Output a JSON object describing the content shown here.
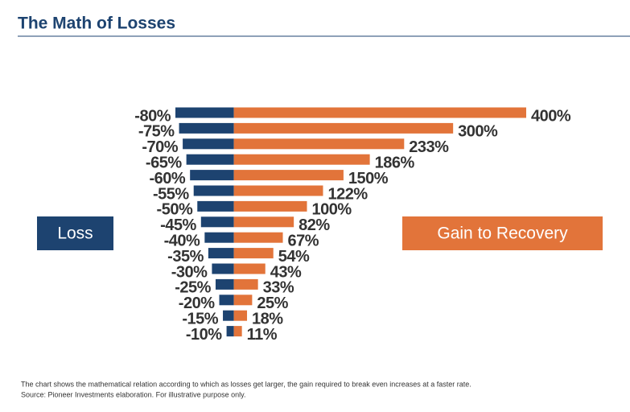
{
  "chart_data": {
    "type": "diverging-bar",
    "title": "The Math of Losses",
    "xlim": [
      -80,
      400
    ],
    "series": [
      {
        "name": "Loss",
        "color": "#1d4370",
        "values": [
          -80,
          -75,
          -70,
          -65,
          -60,
          -55,
          -50,
          -45,
          -40,
          -35,
          -30,
          -25,
          -20,
          -15,
          -10
        ],
        "value_labels": [
          "-80%",
          "-75%",
          "-70%",
          "-65%",
          "-60%",
          "-55%",
          "-50%",
          "-45%",
          "-40%",
          "-35%",
          "-30%",
          "-25%",
          "-20%",
          "-15%",
          "-10%"
        ]
      },
      {
        "name": "Gain to Recovery",
        "color": "#e2743a",
        "values": [
          400,
          300,
          233,
          186,
          150,
          122,
          100,
          82,
          67,
          54,
          43,
          33,
          25,
          18,
          11
        ],
        "value_labels": [
          "400%",
          "300%",
          "233%",
          "186%",
          "150%",
          "122%",
          "100%",
          "82%",
          "67%",
          "54%",
          "43%",
          "33%",
          "25%",
          "18%",
          "11%"
        ]
      }
    ],
    "notes": [
      "The chart shows the mathematical relation according to which as losses get larger, the gain required to break even increases at a faster rate.",
      "Source: Pioneer Investments elaboration. For illustrative purpose only."
    ]
  }
}
